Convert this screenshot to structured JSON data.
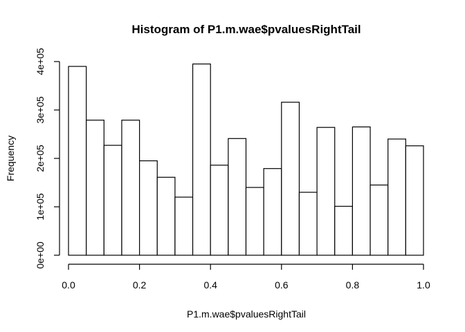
{
  "chart_data": {
    "type": "bar",
    "title": "Histogram of P1.m.wae$pvaluesRightTail",
    "xlabel": "P1.m.wae$pvaluesRightTail",
    "ylabel": "Frequency",
    "xlim": [
      0,
      1
    ],
    "ylim": [
      0,
      400000
    ],
    "x_ticks": [
      0.0,
      0.2,
      0.4,
      0.6,
      0.8,
      1.0
    ],
    "x_tick_labels": [
      "0.0",
      "0.2",
      "0.4",
      "0.6",
      "0.8",
      "1.0"
    ],
    "y_ticks": [
      0,
      100000,
      200000,
      300000,
      400000
    ],
    "y_tick_labels": [
      "0e+00",
      "1e+05",
      "2e+05",
      "3e+05",
      "4e+05"
    ],
    "bins": [
      {
        "start": 0.0,
        "end": 0.05,
        "value": 390000
      },
      {
        "start": 0.05,
        "end": 0.1,
        "value": 279000
      },
      {
        "start": 0.1,
        "end": 0.15,
        "value": 227000
      },
      {
        "start": 0.15,
        "end": 0.2,
        "value": 279000
      },
      {
        "start": 0.2,
        "end": 0.25,
        "value": 195000
      },
      {
        "start": 0.25,
        "end": 0.3,
        "value": 161000
      },
      {
        "start": 0.3,
        "end": 0.35,
        "value": 120000
      },
      {
        "start": 0.35,
        "end": 0.4,
        "value": 395000
      },
      {
        "start": 0.4,
        "end": 0.45,
        "value": 186000
      },
      {
        "start": 0.45,
        "end": 0.5,
        "value": 241000
      },
      {
        "start": 0.5,
        "end": 0.55,
        "value": 140000
      },
      {
        "start": 0.55,
        "end": 0.6,
        "value": 179000
      },
      {
        "start": 0.6,
        "end": 0.65,
        "value": 316000
      },
      {
        "start": 0.65,
        "end": 0.7,
        "value": 130000
      },
      {
        "start": 0.7,
        "end": 0.75,
        "value": 264000
      },
      {
        "start": 0.75,
        "end": 0.8,
        "value": 101000
      },
      {
        "start": 0.8,
        "end": 0.85,
        "value": 265000
      },
      {
        "start": 0.85,
        "end": 0.9,
        "value": 145000
      },
      {
        "start": 0.9,
        "end": 0.95,
        "value": 240000
      },
      {
        "start": 0.95,
        "end": 1.0,
        "value": 226000
      }
    ]
  }
}
